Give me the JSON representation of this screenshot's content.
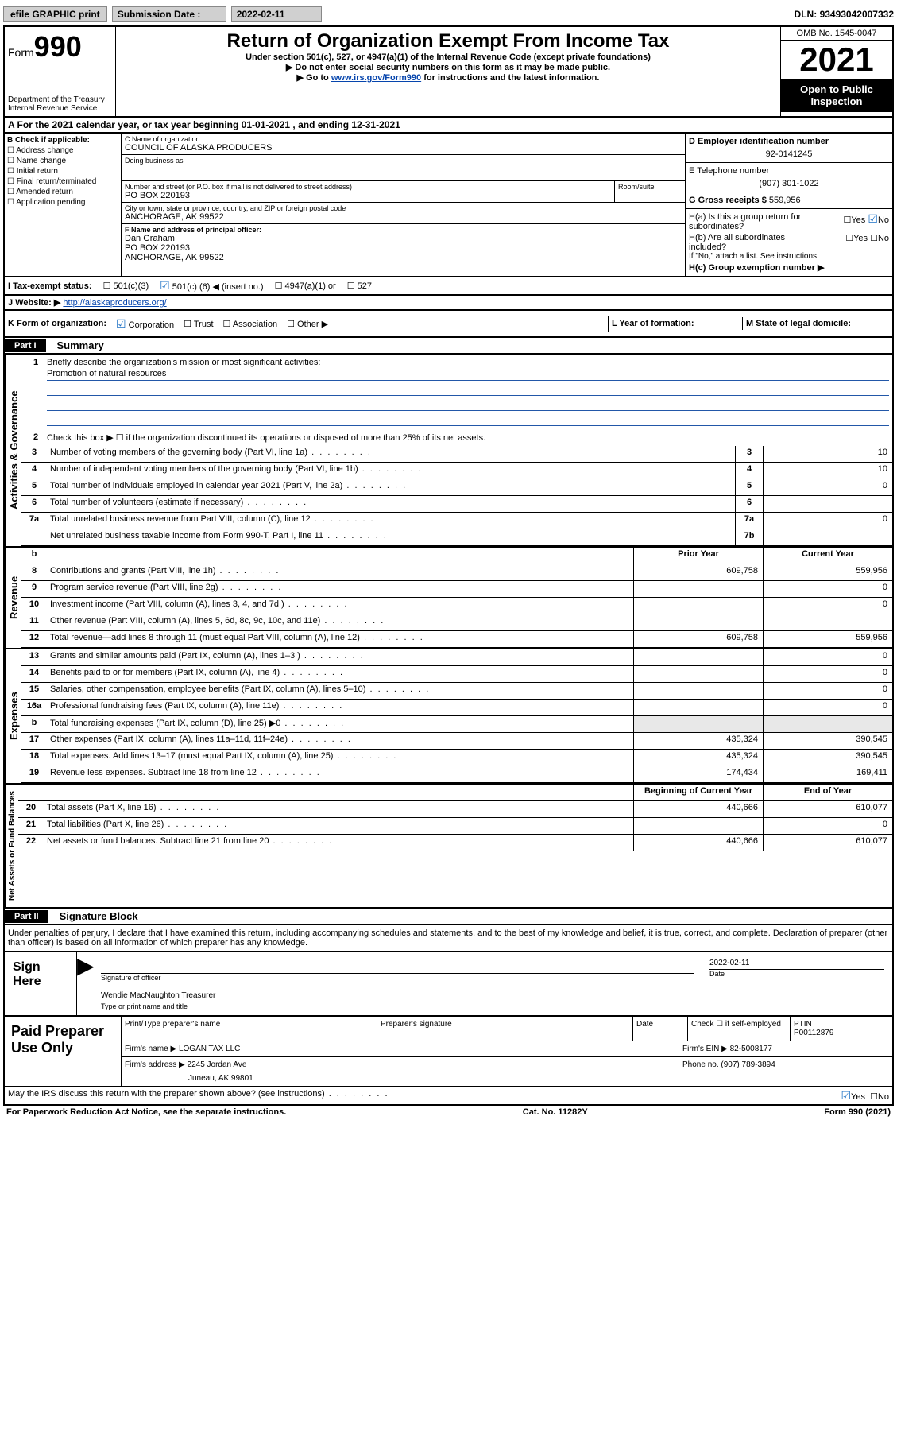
{
  "topbar": {
    "efile": "efile GRAPHIC print",
    "subdate_label": "Submission Date :",
    "subdate": "2022-02-11",
    "dln_label": "DLN:",
    "dln": "93493042007332"
  },
  "header": {
    "form_word": "Form",
    "form_num": "990",
    "dept": "Department of the Treasury\nInternal Revenue Service",
    "title": "Return of Organization Exempt From Income Tax",
    "sub1": "Under section 501(c), 527, or 4947(a)(1) of the Internal Revenue Code (except private foundations)",
    "sub2": "▶ Do not enter social security numbers on this form as it may be made public.",
    "sub3_pre": "▶ Go to ",
    "sub3_link": "www.irs.gov/Form990",
    "sub3_post": " for instructions and the latest information.",
    "omb": "OMB No. 1545-0047",
    "year": "2021",
    "open": "Open to Public Inspection"
  },
  "taxyear": {
    "label_a": "A For the 2021 calendar year, or tax year beginning ",
    "begin": "01-01-2021",
    "mid": " , and ending ",
    "end": "12-31-2021"
  },
  "blockB": {
    "b_label": "B Check if applicable:",
    "opts": [
      "Address change",
      "Name change",
      "Initial return",
      "Final return/terminated",
      "Amended return",
      "Application pending"
    ],
    "c_label": "C Name of organization",
    "c_name": "COUNCIL OF ALASKA PRODUCERS",
    "dba_label": "Doing business as",
    "dba": "",
    "addr_label": "Number and street (or P.O. box if mail is not delivered to street address)",
    "addr": "PO BOX 220193",
    "room_label": "Room/suite",
    "city_label": "City or town, state or province, country, and ZIP or foreign postal code",
    "city": "ANCHORAGE, AK  99522",
    "f_label": "F Name and address of principal officer:",
    "f_name": "Dan Graham",
    "f_addr1": "PO BOX 220193",
    "f_addr2": "ANCHORAGE, AK  99522",
    "d_label": "D Employer identification number",
    "d_val": "92-0141245",
    "e_label": "E Telephone number",
    "e_val": "(907) 301-1022",
    "g_label": "G Gross receipts $",
    "g_val": "559,956",
    "ha_label": "H(a)  Is this a group return for subordinates?",
    "hb_label": "H(b)  Are all subordinates included?",
    "hb_note": "If \"No,\" attach a list. See instructions.",
    "hc_label": "H(c)  Group exemption number ▶",
    "yes": "Yes",
    "no": "No"
  },
  "rowI": {
    "label": "I   Tax-exempt status:",
    "o1": "501(c)(3)",
    "o2_pre": "501(c) (",
    "o2_num": "6",
    "o2_post": ") ◀ (insert no.)",
    "o3": "4947(a)(1) or",
    "o4": "527"
  },
  "rowJ": {
    "label": "J   Website: ▶ ",
    "url": "http://alaskaproducers.org/"
  },
  "rowK": {
    "label": "K Form of organization:",
    "o1": "Corporation",
    "o2": "Trust",
    "o3": "Association",
    "o4": "Other ▶",
    "l_label": "L Year of formation:",
    "l_val": "",
    "m_label": "M State of legal domicile:",
    "m_val": ""
  },
  "part1": {
    "header": "Part I",
    "title": "Summary",
    "mission_label": "Briefly describe the organization's mission or most significant activities:",
    "mission": "Promotion of natural resources",
    "tabs": {
      "ag": "Activities & Governance",
      "rev": "Revenue",
      "exp": "Expenses",
      "net": "Net Assets or Fund Balances"
    },
    "l2": "Check this box ▶ ☐  if the organization discontinued its operations or disposed of more than 25% of its net assets.",
    "lines_ag": [
      {
        "n": "3",
        "d": "Number of voting members of the governing body (Part VI, line 1a)",
        "b": "3",
        "v": "10"
      },
      {
        "n": "4",
        "d": "Number of independent voting members of the governing body (Part VI, line 1b)",
        "b": "4",
        "v": "10"
      },
      {
        "n": "5",
        "d": "Total number of individuals employed in calendar year 2021 (Part V, line 2a)",
        "b": "5",
        "v": "0"
      },
      {
        "n": "6",
        "d": "Total number of volunteers (estimate if necessary)",
        "b": "6",
        "v": ""
      },
      {
        "n": "7a",
        "d": "Total unrelated business revenue from Part VIII, column (C), line 12",
        "b": "7a",
        "v": "0"
      },
      {
        "n": "",
        "d": "Net unrelated business taxable income from Form 990-T, Part I, line 11",
        "b": "7b",
        "v": ""
      }
    ],
    "col_prior": "Prior Year",
    "col_current": "Current Year",
    "lines_rev": [
      {
        "n": "8",
        "d": "Contributions and grants (Part VIII, line 1h)",
        "p": "609,758",
        "c": "559,956"
      },
      {
        "n": "9",
        "d": "Program service revenue (Part VIII, line 2g)",
        "p": "",
        "c": "0"
      },
      {
        "n": "10",
        "d": "Investment income (Part VIII, column (A), lines 3, 4, and 7d )",
        "p": "",
        "c": "0"
      },
      {
        "n": "11",
        "d": "Other revenue (Part VIII, column (A), lines 5, 6d, 8c, 9c, 10c, and 11e)",
        "p": "",
        "c": ""
      },
      {
        "n": "12",
        "d": "Total revenue—add lines 8 through 11 (must equal Part VIII, column (A), line 12)",
        "p": "609,758",
        "c": "559,956"
      }
    ],
    "lines_exp": [
      {
        "n": "13",
        "d": "Grants and similar amounts paid (Part IX, column (A), lines 1–3 )",
        "p": "",
        "c": "0"
      },
      {
        "n": "14",
        "d": "Benefits paid to or for members (Part IX, column (A), line 4)",
        "p": "",
        "c": "0"
      },
      {
        "n": "15",
        "d": "Salaries, other compensation, employee benefits (Part IX, column (A), lines 5–10)",
        "p": "",
        "c": "0"
      },
      {
        "n": "16a",
        "d": "Professional fundraising fees (Part IX, column (A), line 11e)",
        "p": "",
        "c": "0"
      },
      {
        "n": "b",
        "d": "Total fundraising expenses (Part IX, column (D), line 25) ▶0",
        "p": "",
        "c": "",
        "grey": true
      },
      {
        "n": "17",
        "d": "Other expenses (Part IX, column (A), lines 11a–11d, 11f–24e)",
        "p": "435,324",
        "c": "390,545"
      },
      {
        "n": "18",
        "d": "Total expenses. Add lines 13–17 (must equal Part IX, column (A), line 25)",
        "p": "435,324",
        "c": "390,545"
      },
      {
        "n": "19",
        "d": "Revenue less expenses. Subtract line 18 from line 12",
        "p": "174,434",
        "c": "169,411"
      }
    ],
    "col_boy": "Beginning of Current Year",
    "col_eoy": "End of Year",
    "lines_net": [
      {
        "n": "20",
        "d": "Total assets (Part X, line 16)",
        "p": "440,666",
        "c": "610,077"
      },
      {
        "n": "21",
        "d": "Total liabilities (Part X, line 26)",
        "p": "",
        "c": "0"
      },
      {
        "n": "22",
        "d": "Net assets or fund balances. Subtract line 21 from line 20",
        "p": "440,666",
        "c": "610,077"
      }
    ]
  },
  "part2": {
    "header": "Part II",
    "title": "Signature Block",
    "decl": "Under penalties of perjury, I declare that I have examined this return, including accompanying schedules and statements, and to the best of my knowledge and belief, it is true, correct, and complete. Declaration of preparer (other than officer) is based on all information of which preparer has any knowledge.",
    "sign_here": "Sign Here",
    "sig_of_officer": "Signature of officer",
    "date": "Date",
    "sig_date": "2022-02-11",
    "officer_name": "Wendie MacNaughton Treasurer",
    "type_name": "Type or print name and title",
    "paid": "Paid Preparer Use Only",
    "pt_name": "Print/Type preparer's name",
    "pt_sig": "Preparer's signature",
    "pt_date": "Date",
    "pt_check": "Check ☐ if self-employed",
    "ptin_label": "PTIN",
    "ptin": "P00112879",
    "firm_name_label": "Firm's name   ▶",
    "firm_name": "LOGAN TAX LLC",
    "firm_ein_label": "Firm's EIN ▶",
    "firm_ein": "82-5008177",
    "firm_addr_label": "Firm's address ▶",
    "firm_addr1": "2245 Jordan Ave",
    "firm_addr2": "Juneau, AK  99801",
    "phone_label": "Phone no.",
    "phone": "(907) 789-3894",
    "discuss": "May the IRS discuss this return with the preparer shown above? (see instructions)"
  },
  "footer": {
    "paperwork": "For Paperwork Reduction Act Notice, see the separate instructions.",
    "cat": "Cat. No. 11282Y",
    "form": "Form 990 (2021)"
  }
}
